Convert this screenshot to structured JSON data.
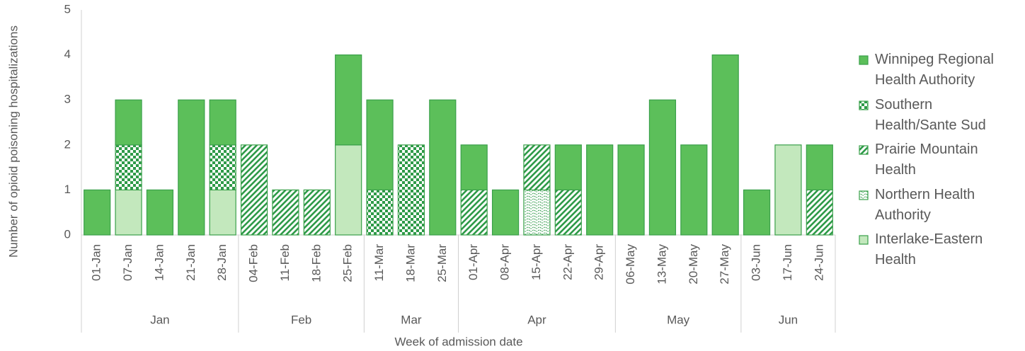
{
  "chart_data": {
    "type": "stacked_bar",
    "ylabel": "Number of opioid poisoning hospitalizations",
    "xlabel": "Week of admission date",
    "categories": [
      "01-Jan",
      "07-Jan",
      "14-Jan",
      "21-Jan",
      "28-Jan",
      "04-Feb",
      "11-Feb",
      "18-Feb",
      "25-Feb",
      "11-Mar",
      "18-Mar",
      "25-Mar",
      "01-Apr",
      "08-Apr",
      "15-Apr",
      "22-Apr",
      "29-Apr",
      "06-May",
      "13-May",
      "20-May",
      "27-May",
      "03-Jun",
      "17-Jun",
      "24-Jun"
    ],
    "groups": [
      "Jan",
      "Feb",
      "Mar",
      "Apr",
      "May",
      "Jun"
    ],
    "series": [
      {
        "name": "Winnipeg Regional Health Authority",
        "color": "#5cbf5a",
        "pattern": "solid",
        "values": [
          1,
          1,
          1,
          3,
          1,
          0,
          0,
          0,
          2,
          2,
          0,
          3,
          1,
          1,
          0,
          1,
          2,
          2,
          3,
          2,
          4,
          1,
          0,
          1
        ]
      },
      {
        "name": "Southern Health/Sante Sud",
        "color": "#2e9a48",
        "pattern": "checker",
        "values": [
          0,
          1,
          0,
          0,
          1,
          0,
          0,
          0,
          0,
          1,
          2,
          0,
          0,
          0,
          0,
          0,
          0,
          0,
          0,
          0,
          0,
          0,
          0,
          0
        ]
      },
      {
        "name": "Prairie Mountain Health",
        "color": "#2e9a48",
        "pattern": "stripes",
        "values": [
          0,
          0,
          0,
          0,
          0,
          2,
          1,
          1,
          0,
          0,
          0,
          0,
          1,
          0,
          1,
          1,
          0,
          0,
          0,
          0,
          0,
          0,
          0,
          1
        ]
      },
      {
        "name": "Northern Health Authority",
        "color": "#2e9a48",
        "pattern": "waves",
        "values": [
          0,
          0,
          0,
          0,
          0,
          0,
          0,
          0,
          0,
          0,
          0,
          0,
          0,
          0,
          1,
          0,
          0,
          0,
          0,
          0,
          0,
          0,
          0,
          0
        ]
      },
      {
        "name": "Interlake-Eastern Health",
        "color": "#c3e8bd",
        "pattern": "solid",
        "values": [
          0,
          1,
          0,
          0,
          1,
          0,
          0,
          0,
          2,
          0,
          0,
          0,
          0,
          0,
          0,
          0,
          0,
          0,
          0,
          0,
          0,
          0,
          2,
          0
        ]
      }
    ],
    "ylim": [
      0,
      5
    ],
    "yticks": [
      0,
      1,
      2,
      3,
      4,
      5
    ]
  }
}
